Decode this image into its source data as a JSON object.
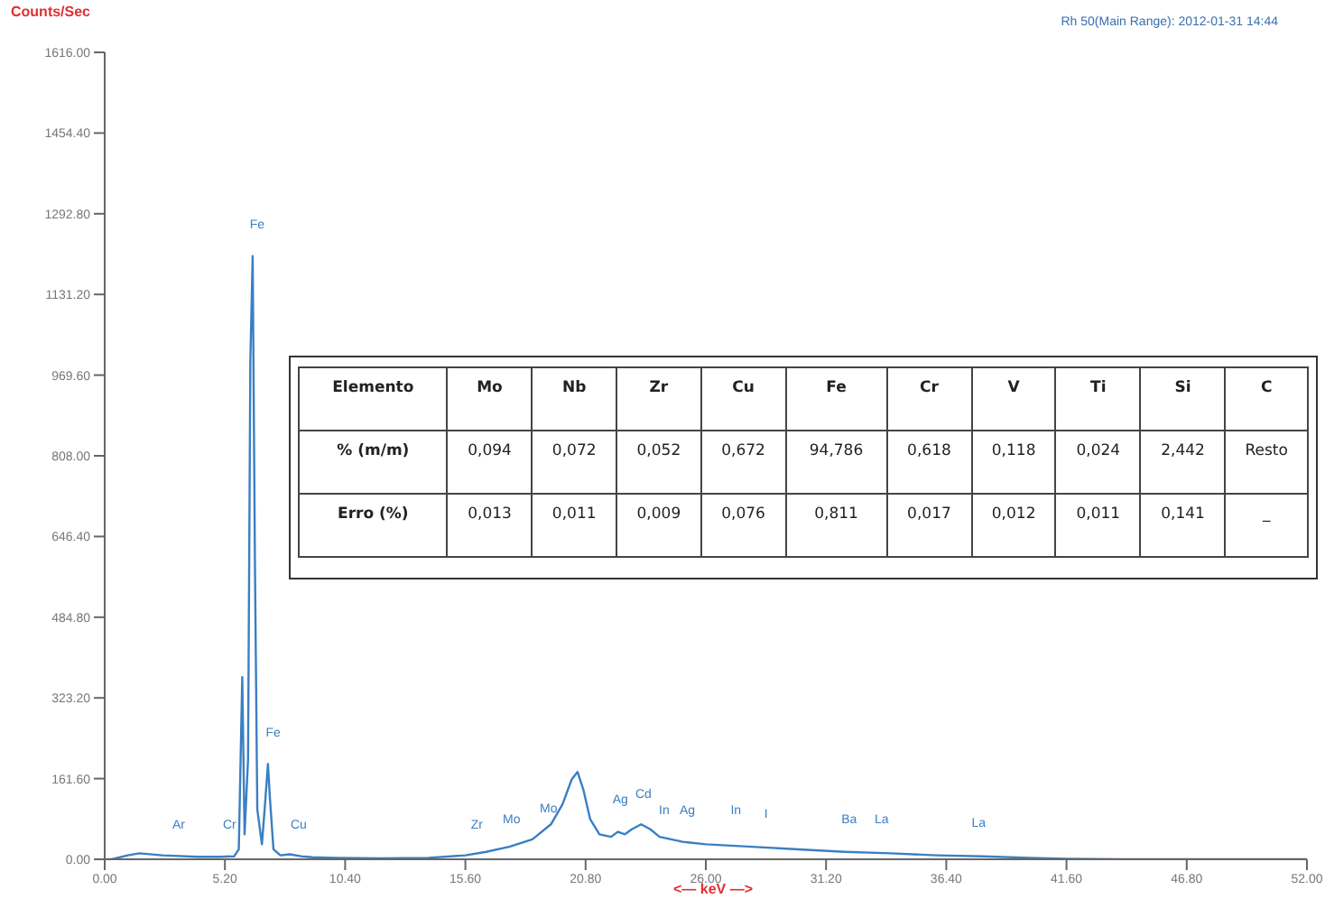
{
  "chart_data": {
    "type": "line",
    "ylabel": "Counts/Sec",
    "xlabel": "<— keV —>",
    "x": [
      0,
      0.3,
      1.0,
      1.5,
      2.5,
      4,
      5.0,
      5.6,
      5.8,
      5.95,
      6.05,
      6.2,
      6.3,
      6.4,
      6.5,
      6.6,
      6.8,
      6.95,
      7.06,
      7.15,
      7.3,
      7.6,
      8.0,
      8.5,
      9,
      10,
      12,
      14,
      15.6,
      16.5,
      17.5,
      18.5,
      19.3,
      19.8,
      20.2,
      20.45,
      20.7,
      21.0,
      21.4,
      21.9,
      22.2,
      22.5,
      22.8,
      23.2,
      23.6,
      24,
      25,
      26,
      28,
      30,
      32,
      34,
      36,
      38,
      40,
      41.6,
      44,
      52
    ],
    "series": [
      {
        "color": "#3a7fc4",
        "values": [
          0,
          0,
          8,
          12,
          8,
          5,
          5,
          6,
          20,
          365,
          50,
          200,
          1000,
          1208,
          583,
          100,
          30,
          120,
          191,
          120,
          20,
          8,
          10,
          6,
          4,
          3,
          2,
          3,
          8,
          15,
          25,
          40,
          70,
          110,
          160,
          175,
          140,
          80,
          50,
          45,
          55,
          50,
          60,
          70,
          60,
          45,
          35,
          30,
          25,
          20,
          15,
          12,
          8,
          6,
          3,
          1,
          0,
          0
        ]
      }
    ],
    "xlim": [
      0,
      52
    ],
    "xticks": [
      {
        "value": 0,
        "label": "0.00"
      },
      {
        "value": 5.2,
        "label": "5.20"
      },
      {
        "value": 10.4,
        "label": "10.40"
      },
      {
        "value": 15.6,
        "label": "15.60"
      },
      {
        "value": 20.8,
        "label": "20.80"
      },
      {
        "value": 26,
        "label": "26.00"
      },
      {
        "value": 31.2,
        "label": "31.20"
      },
      {
        "value": 36.4,
        "label": "36.40"
      },
      {
        "value": 41.6,
        "label": "41.60"
      },
      {
        "value": 46.8,
        "label": "46.80"
      },
      {
        "value": 52,
        "label": "52.00"
      }
    ],
    "ylim": [
      0,
      1616
    ],
    "yticks": [
      {
        "value": 0,
        "label": "0.00"
      },
      {
        "value": 161.6,
        "label": "161.60"
      },
      {
        "value": 323.2,
        "label": "323.20"
      },
      {
        "value": 484.8,
        "label": "484.80"
      },
      {
        "value": 646.4,
        "label": "646.40"
      },
      {
        "value": 808,
        "label": "808.00"
      },
      {
        "value": 969.6,
        "label": "969.60"
      },
      {
        "value": 1131.2,
        "label": "1131.20"
      },
      {
        "value": 1292.8,
        "label": "1292.80"
      },
      {
        "value": 1454.4,
        "label": "1454.40"
      },
      {
        "value": 1616,
        "label": "1616.00"
      }
    ],
    "grid": false,
    "marker": "none",
    "line_style": "solid",
    "annotations": [
      "Rh 50(Main Range): 2012-01-31 14:44",
      "Elemento",
      "Mo",
      "Nb",
      "Zr",
      "Cu",
      "Fe",
      "Cr",
      "V",
      "Ti",
      "Si",
      "C",
      "% (m/m)",
      "0,094",
      "0,072",
      "0,052",
      "0,672",
      "94,786",
      "0,618",
      "0,118",
      "0,024",
      "2,442",
      "Resto",
      "Erro (%)",
      "0,013",
      "0,011",
      "0,009",
      "0,076",
      "0,811",
      "0,017",
      "0,012",
      "0,011",
      "0,141",
      "_",
      "Ar",
      "Cr",
      "Fe",
      "Fe",
      "Cu",
      "Zr",
      "Mo",
      "Mo",
      "Ag",
      "Cd",
      "In",
      "Ag",
      "In",
      "I",
      "Ba",
      "La",
      "La"
    ]
  }
}
